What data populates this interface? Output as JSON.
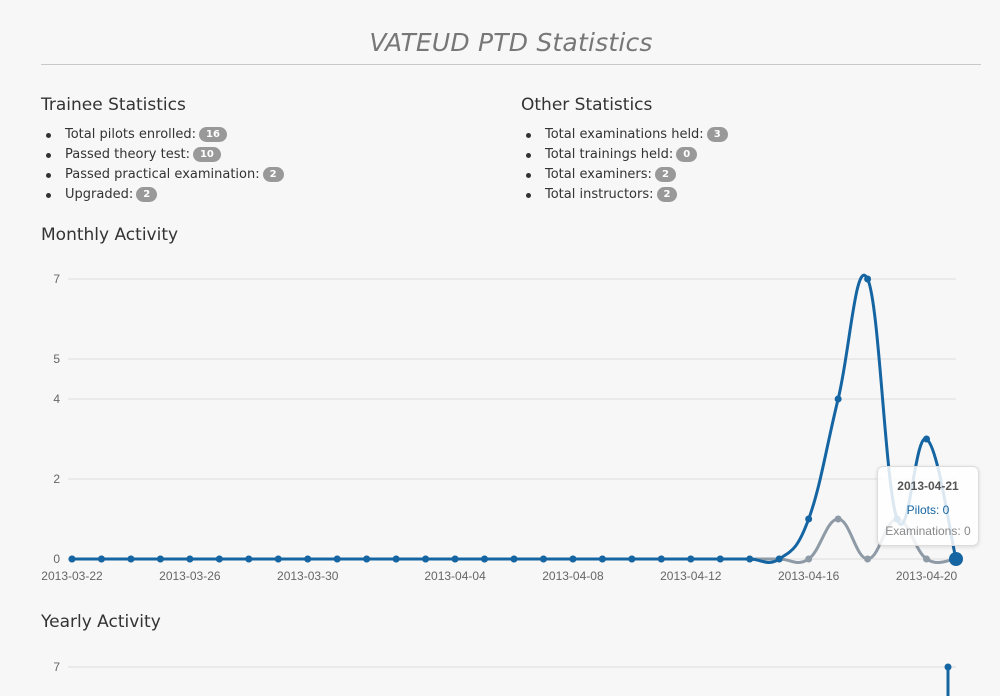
{
  "page": {
    "title": "VATEUD PTD Statistics"
  },
  "trainee": {
    "heading": "Trainee Statistics",
    "items": [
      {
        "label": "Total pilots enrolled:",
        "value": "16"
      },
      {
        "label": "Passed theory test:",
        "value": "10"
      },
      {
        "label": "Passed practical examination:",
        "value": "2"
      },
      {
        "label": "Upgraded:",
        "value": "2"
      }
    ]
  },
  "other": {
    "heading": "Other Statistics",
    "items": [
      {
        "label": "Total examinations held:",
        "value": "3"
      },
      {
        "label": "Total trainings held:",
        "value": "0"
      },
      {
        "label": "Total examiners:",
        "value": "2"
      },
      {
        "label": "Total instructors:",
        "value": "2"
      }
    ]
  },
  "monthly": {
    "heading": "Monthly Activity"
  },
  "yearly": {
    "heading": "Yearly Activity"
  },
  "colors": {
    "pilots": "#1565a3",
    "examinations": "#8e9aa6"
  },
  "tooltip": {
    "date": "2013-04-21",
    "pilots_text": "Pilots: 0",
    "examinations_text": "Examinations: 0"
  },
  "chart_data": [
    {
      "type": "line",
      "title": "Monthly Activity",
      "x_start": "2013-03-22",
      "x": [
        "2013-03-22",
        "2013-03-23",
        "2013-03-24",
        "2013-03-25",
        "2013-03-26",
        "2013-03-27",
        "2013-03-28",
        "2013-03-29",
        "2013-03-30",
        "2013-03-31",
        "2013-04-01",
        "2013-04-02",
        "2013-04-03",
        "2013-04-04",
        "2013-04-05",
        "2013-04-06",
        "2013-04-07",
        "2013-04-08",
        "2013-04-09",
        "2013-04-10",
        "2013-04-11",
        "2013-04-12",
        "2013-04-13",
        "2013-04-14",
        "2013-04-15",
        "2013-04-16",
        "2013-04-17",
        "2013-04-18",
        "2013-04-19",
        "2013-04-20",
        "2013-04-21"
      ],
      "x_tick_labels": [
        "2013-03-22",
        "2013-03-26",
        "2013-03-30",
        "2013-04-04",
        "2013-04-08",
        "2013-04-12",
        "2013-04-16",
        "2013-04-20"
      ],
      "y_ticks": [
        0,
        2,
        4,
        5,
        7
      ],
      "ylim": [
        0,
        7
      ],
      "grid": true,
      "series": [
        {
          "name": "Pilots",
          "values": [
            0,
            0,
            0,
            0,
            0,
            0,
            0,
            0,
            0,
            0,
            0,
            0,
            0,
            0,
            0,
            0,
            0,
            0,
            0,
            0,
            0,
            0,
            0,
            0,
            0,
            1,
            4,
            7,
            1,
            3,
            0
          ]
        },
        {
          "name": "Examinations",
          "values": [
            0,
            0,
            0,
            0,
            0,
            0,
            0,
            0,
            0,
            0,
            0,
            0,
            0,
            0,
            0,
            0,
            0,
            0,
            0,
            0,
            0,
            0,
            0,
            0,
            0,
            0,
            1,
            0,
            1,
            0,
            0
          ]
        }
      ]
    },
    {
      "type": "line",
      "title": "Yearly Activity",
      "y_ticks": [
        7
      ],
      "series": [
        {
          "name": "Pilots",
          "values": [
            7
          ]
        }
      ]
    }
  ]
}
